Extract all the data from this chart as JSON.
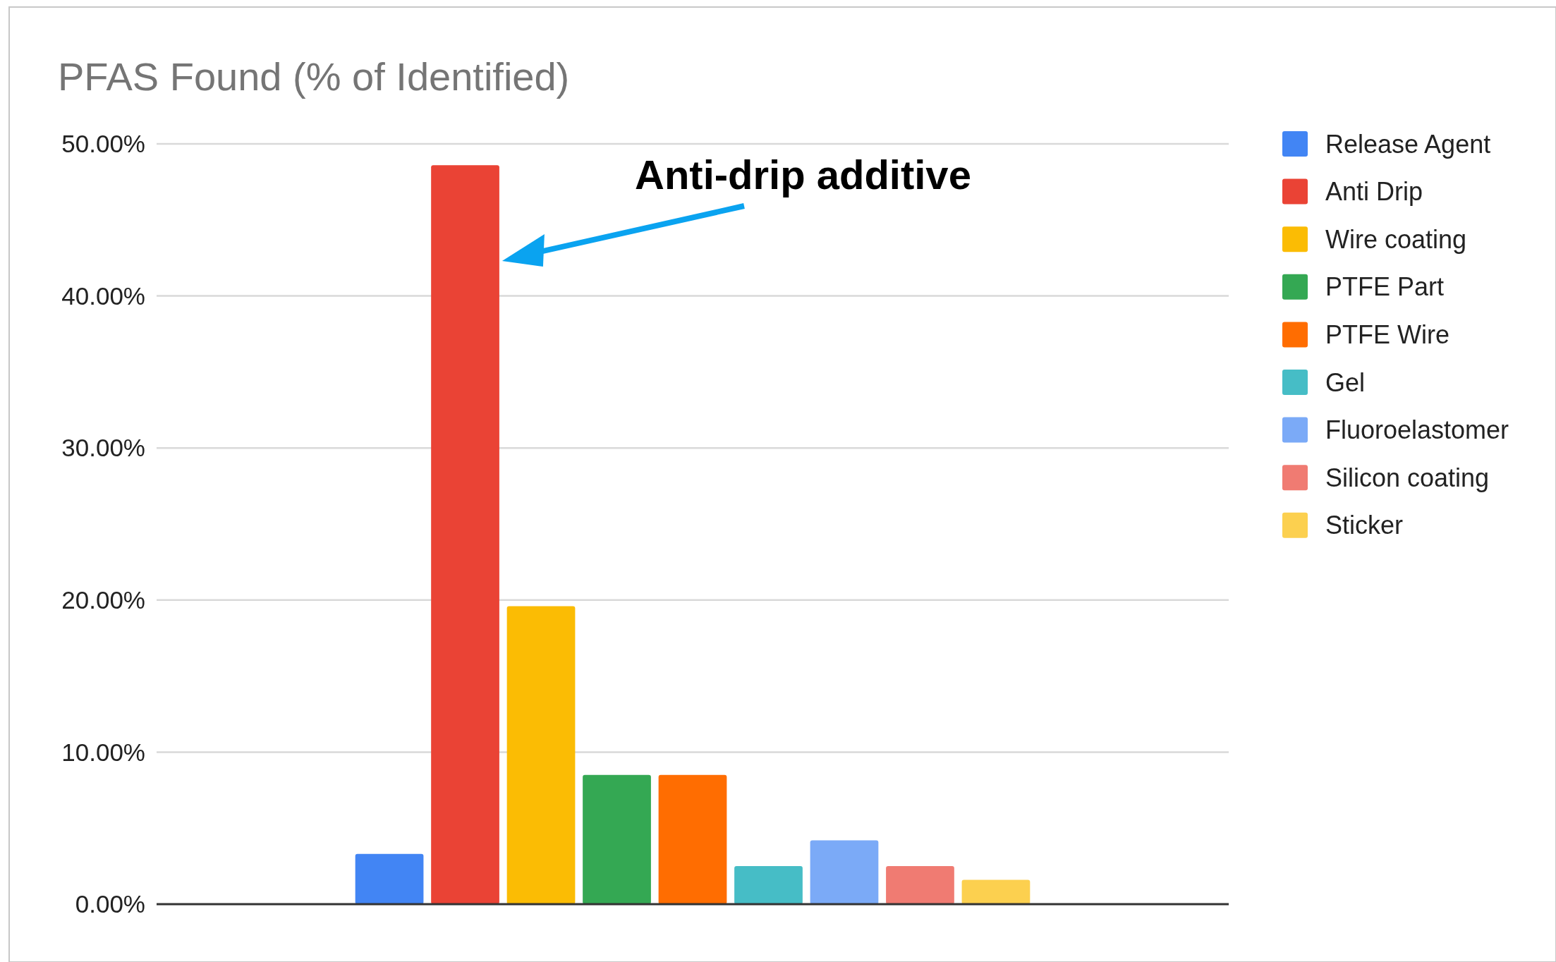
{
  "chart_data": {
    "type": "bar",
    "title": "PFAS Found (% of Identified)",
    "categories": [
      null
    ],
    "series": [
      {
        "name": "Release Agent",
        "color": "#4285f4",
        "values": [
          3.3
        ]
      },
      {
        "name": "Anti Drip",
        "color": "#ea4335",
        "values": [
          48.6
        ]
      },
      {
        "name": "Wire coating",
        "color": "#fbbc04",
        "values": [
          19.6
        ]
      },
      {
        "name": "PTFE Part",
        "color": "#34a853",
        "values": [
          8.5
        ]
      },
      {
        "name": "PTFE Wire",
        "color": "#ff6d01",
        "values": [
          8.5
        ]
      },
      {
        "name": "Gel",
        "color": "#46bdc6",
        "values": [
          2.5
        ]
      },
      {
        "name": "Fluoroelastomer",
        "color": "#7baaf7",
        "values": [
          4.2
        ]
      },
      {
        "name": "Silicon coating",
        "color": "#f07b72",
        "values": [
          2.5
        ]
      },
      {
        "name": "Sticker",
        "color": "#fcd04f",
        "values": [
          1.6
        ]
      }
    ],
    "ylim": [
      0,
      50
    ],
    "yticks": [
      {
        "value": 0,
        "label": "0.00%"
      },
      {
        "value": 10,
        "label": "10.00%"
      },
      {
        "value": 20,
        "label": "20.00%"
      },
      {
        "value": 30,
        "label": "30.00%"
      },
      {
        "value": 40,
        "label": "40.00%"
      },
      {
        "value": 50,
        "label": "50.00%"
      }
    ],
    "grid": "y",
    "legend": "right",
    "annotations": [
      "Anti-drip additive"
    ]
  }
}
